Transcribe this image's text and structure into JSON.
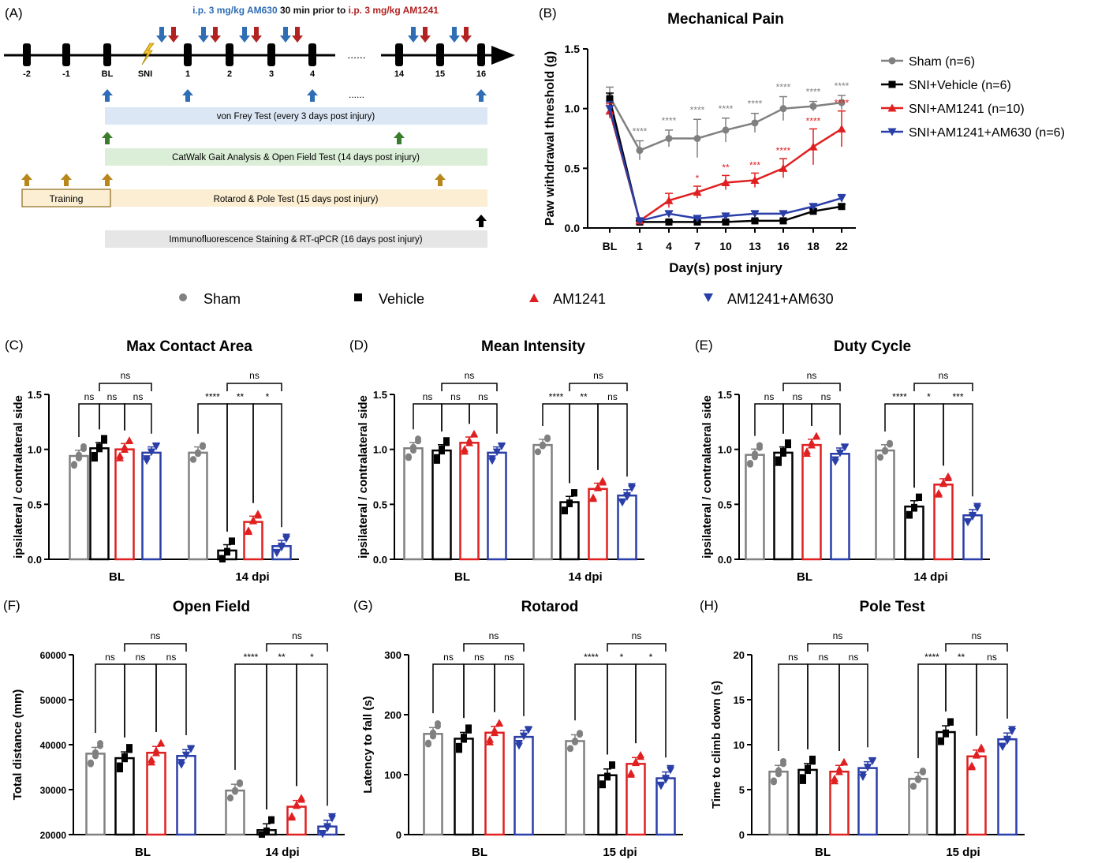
{
  "colors": {
    "sham": "#808080",
    "vehicle": "#000000",
    "am1241": "#e02020",
    "am630": "#2a3ea8",
    "blue_arrow": "#2f6db5",
    "red_arrow": "#b22222",
    "green_arrow": "#3a7d2a",
    "gold_arrow": "#b8861b"
  },
  "schematic": {
    "panel_label": "(A)",
    "dose_part1": "i.p. 3 mg/kg AM630",
    "dose_part2": " 30 min prior to ",
    "dose_part3": "i.p. 3 mg/kg AM1241",
    "ticks": [
      "-2",
      "-1",
      "BL",
      "SNI",
      "1",
      "2",
      "3",
      "4",
      "14",
      "15",
      "16"
    ],
    "dots": "......",
    "bar_dots": "......",
    "bars": {
      "vonfrey": "von Frey Test (every 3 days post injury)",
      "catwalk": "CatWalk Gait Analysis & Open Field Test (14 days post injury)",
      "rotarod": "Rotarod & Pole Test (15 days post injury)",
      "immuno": "Immunofluorescence Staining & RT-qPCR (16 days post injury)",
      "training": "Training"
    }
  },
  "legend_groups": [
    "Sham",
    "Vehicle",
    "AM1241",
    "AM1241+AM630"
  ],
  "chart_data": [
    {
      "id": "B",
      "panel_label": "(B)",
      "type": "line",
      "title": "Mechanical Pain",
      "xlabel": "Day(s) post injury",
      "ylabel": "Paw withdrawal threshold (g)",
      "ylim": [
        0,
        1.5
      ],
      "yticks": [
        "0.0",
        "0.5",
        "1.0",
        "1.5"
      ],
      "categories": [
        "BL",
        "1",
        "4",
        "7",
        "10",
        "13",
        "16",
        "18",
        "22"
      ],
      "series": [
        {
          "name": "Sham (n=6)",
          "values": [
            1.1,
            0.65,
            0.75,
            0.75,
            0.82,
            0.88,
            1.0,
            1.02,
            1.05
          ],
          "err": [
            0.08,
            0.08,
            0.07,
            0.16,
            0.1,
            0.08,
            0.1,
            0.04,
            0.06
          ]
        },
        {
          "name": "SNI+Vehicle (n=6)",
          "values": [
            1.08,
            0.05,
            0.05,
            0.05,
            0.05,
            0.06,
            0.06,
            0.14,
            0.18
          ],
          "err": [
            0.05,
            0.01,
            0.01,
            0.01,
            0.01,
            0.01,
            0.01,
            0.02,
            0.02
          ]
        },
        {
          "name": "SNI+AM1241 (n=10)",
          "values": [
            0.98,
            0.06,
            0.23,
            0.3,
            0.38,
            0.4,
            0.5,
            0.68,
            0.83
          ],
          "err": [
            0.06,
            0.01,
            0.06,
            0.05,
            0.06,
            0.06,
            0.08,
            0.15,
            0.15
          ]
        },
        {
          "name": "SNI+AM1241+AM630 (n=6)",
          "values": [
            1.0,
            0.06,
            0.12,
            0.08,
            0.1,
            0.12,
            0.12,
            0.18,
            0.25
          ],
          "err": [
            0.06,
            0.01,
            0.02,
            0.02,
            0.02,
            0.02,
            0.02,
            0.02,
            0.03
          ]
        }
      ],
      "sig_gray": [
        "****",
        "****",
        "****",
        "****",
        "****",
        "****",
        "****",
        "****"
      ],
      "sig_red": [
        "*",
        "**",
        "***",
        "****",
        "****",
        "****"
      ]
    },
    {
      "id": "C",
      "panel_label": "(C)",
      "type": "bar",
      "title": "Max Contact Area",
      "ylabel": "ipsilateral / contralateral side",
      "ylim": [
        0,
        1.5
      ],
      "yticks": [
        "0.0",
        "0.5",
        "1.0",
        "1.5"
      ],
      "categories": [
        "BL",
        "14 dpi"
      ],
      "series": [
        {
          "name": "Sham",
          "values": [
            0.94,
            0.97
          ]
        },
        {
          "name": "Vehicle",
          "values": [
            1.01,
            0.08
          ]
        },
        {
          "name": "AM1241",
          "values": [
            1.0,
            0.34
          ]
        },
        {
          "name": "AM1241+AM630",
          "values": [
            0.97,
            0.12
          ]
        }
      ],
      "sig": [
        [
          "ns",
          "ns",
          "ns",
          "ns"
        ],
        [
          "****",
          "**",
          "*",
          "ns"
        ]
      ]
    },
    {
      "id": "D",
      "panel_label": "(D)",
      "type": "bar",
      "title": "Mean Intensity",
      "ylabel": "ipsilateral / contralateral side",
      "ylim": [
        0,
        1.5
      ],
      "yticks": [
        "0.0",
        "0.5",
        "1.0",
        "1.5"
      ],
      "categories": [
        "BL",
        "14 dpi"
      ],
      "series": [
        {
          "name": "Sham",
          "values": [
            1.01,
            1.04
          ]
        },
        {
          "name": "Vehicle",
          "values": [
            0.99,
            0.52
          ]
        },
        {
          "name": "AM1241",
          "values": [
            1.06,
            0.64
          ]
        },
        {
          "name": "AM1241+AM630",
          "values": [
            0.97,
            0.58
          ]
        }
      ],
      "sig": [
        [
          "ns",
          "ns",
          "ns",
          "ns"
        ],
        [
          "****",
          "**",
          "ns",
          "ns"
        ]
      ]
    },
    {
      "id": "E",
      "panel_label": "(E)",
      "type": "bar",
      "title": "Duty Cycle",
      "ylabel": "ipsilateral / contralateral side",
      "ylim": [
        0,
        1.5
      ],
      "yticks": [
        "0.0",
        "0.5",
        "1.0",
        "1.5"
      ],
      "categories": [
        "BL",
        "14 dpi"
      ],
      "series": [
        {
          "name": "Sham",
          "values": [
            0.95,
            0.99
          ]
        },
        {
          "name": "Vehicle",
          "values": [
            0.97,
            0.48
          ]
        },
        {
          "name": "AM1241",
          "values": [
            1.04,
            0.68
          ]
        },
        {
          "name": "AM1241+AM630",
          "values": [
            0.96,
            0.4
          ]
        }
      ],
      "sig": [
        [
          "ns",
          "ns",
          "ns",
          "ns"
        ],
        [
          "****",
          "*",
          "***",
          "ns"
        ]
      ]
    },
    {
      "id": "F",
      "panel_label": "(F)",
      "type": "bar",
      "title": "Open Field",
      "ylabel": "Total distance (mm)",
      "ylim": [
        20000,
        60000
      ],
      "yticks": [
        "20000",
        "30000",
        "40000",
        "50000",
        "60000"
      ],
      "categories": [
        "BL",
        "14 dpi"
      ],
      "series": [
        {
          "name": "Sham",
          "values": [
            38000,
            29800
          ]
        },
        {
          "name": "Vehicle",
          "values": [
            37000,
            21000
          ]
        },
        {
          "name": "AM1241",
          "values": [
            38200,
            26200
          ]
        },
        {
          "name": "AM1241+AM630",
          "values": [
            37500,
            21800
          ]
        }
      ],
      "sig": [
        [
          "ns",
          "ns",
          "ns",
          "ns"
        ],
        [
          "****",
          "**",
          "*",
          "ns"
        ]
      ]
    },
    {
      "id": "G",
      "panel_label": "(G)",
      "type": "bar",
      "title": "Rotarod",
      "ylabel": "Latency to fall (s)",
      "ylim": [
        0,
        300
      ],
      "yticks": [
        "0",
        "100",
        "200",
        "300"
      ],
      "categories": [
        "BL",
        "15 dpi"
      ],
      "series": [
        {
          "name": "Sham",
          "values": [
            168,
            156
          ]
        },
        {
          "name": "Vehicle",
          "values": [
            160,
            99
          ]
        },
        {
          "name": "AM1241",
          "values": [
            170,
            118
          ]
        },
        {
          "name": "AM1241+AM630",
          "values": [
            163,
            94
          ]
        }
      ],
      "sig": [
        [
          "ns",
          "ns",
          "ns",
          "ns"
        ],
        [
          "****",
          "*",
          "*",
          "ns"
        ]
      ]
    },
    {
      "id": "H",
      "panel_label": "(H)",
      "type": "bar",
      "title": "Pole Test",
      "ylabel": "Time to climb down (s)",
      "ylim": [
        0,
        20
      ],
      "yticks": [
        "0",
        "5",
        "10",
        "15",
        "20"
      ],
      "categories": [
        "BL",
        "15 dpi"
      ],
      "series": [
        {
          "name": "Sham",
          "values": [
            7.0,
            6.2
          ]
        },
        {
          "name": "Vehicle",
          "values": [
            7.2,
            11.4
          ]
        },
        {
          "name": "AM1241",
          "values": [
            7.0,
            8.7
          ]
        },
        {
          "name": "AM1241+AM630",
          "values": [
            7.4,
            10.6
          ]
        }
      ],
      "sig": [
        [
          "ns",
          "ns",
          "ns",
          "ns"
        ],
        [
          "****",
          "**",
          "ns",
          "ns"
        ]
      ]
    }
  ]
}
